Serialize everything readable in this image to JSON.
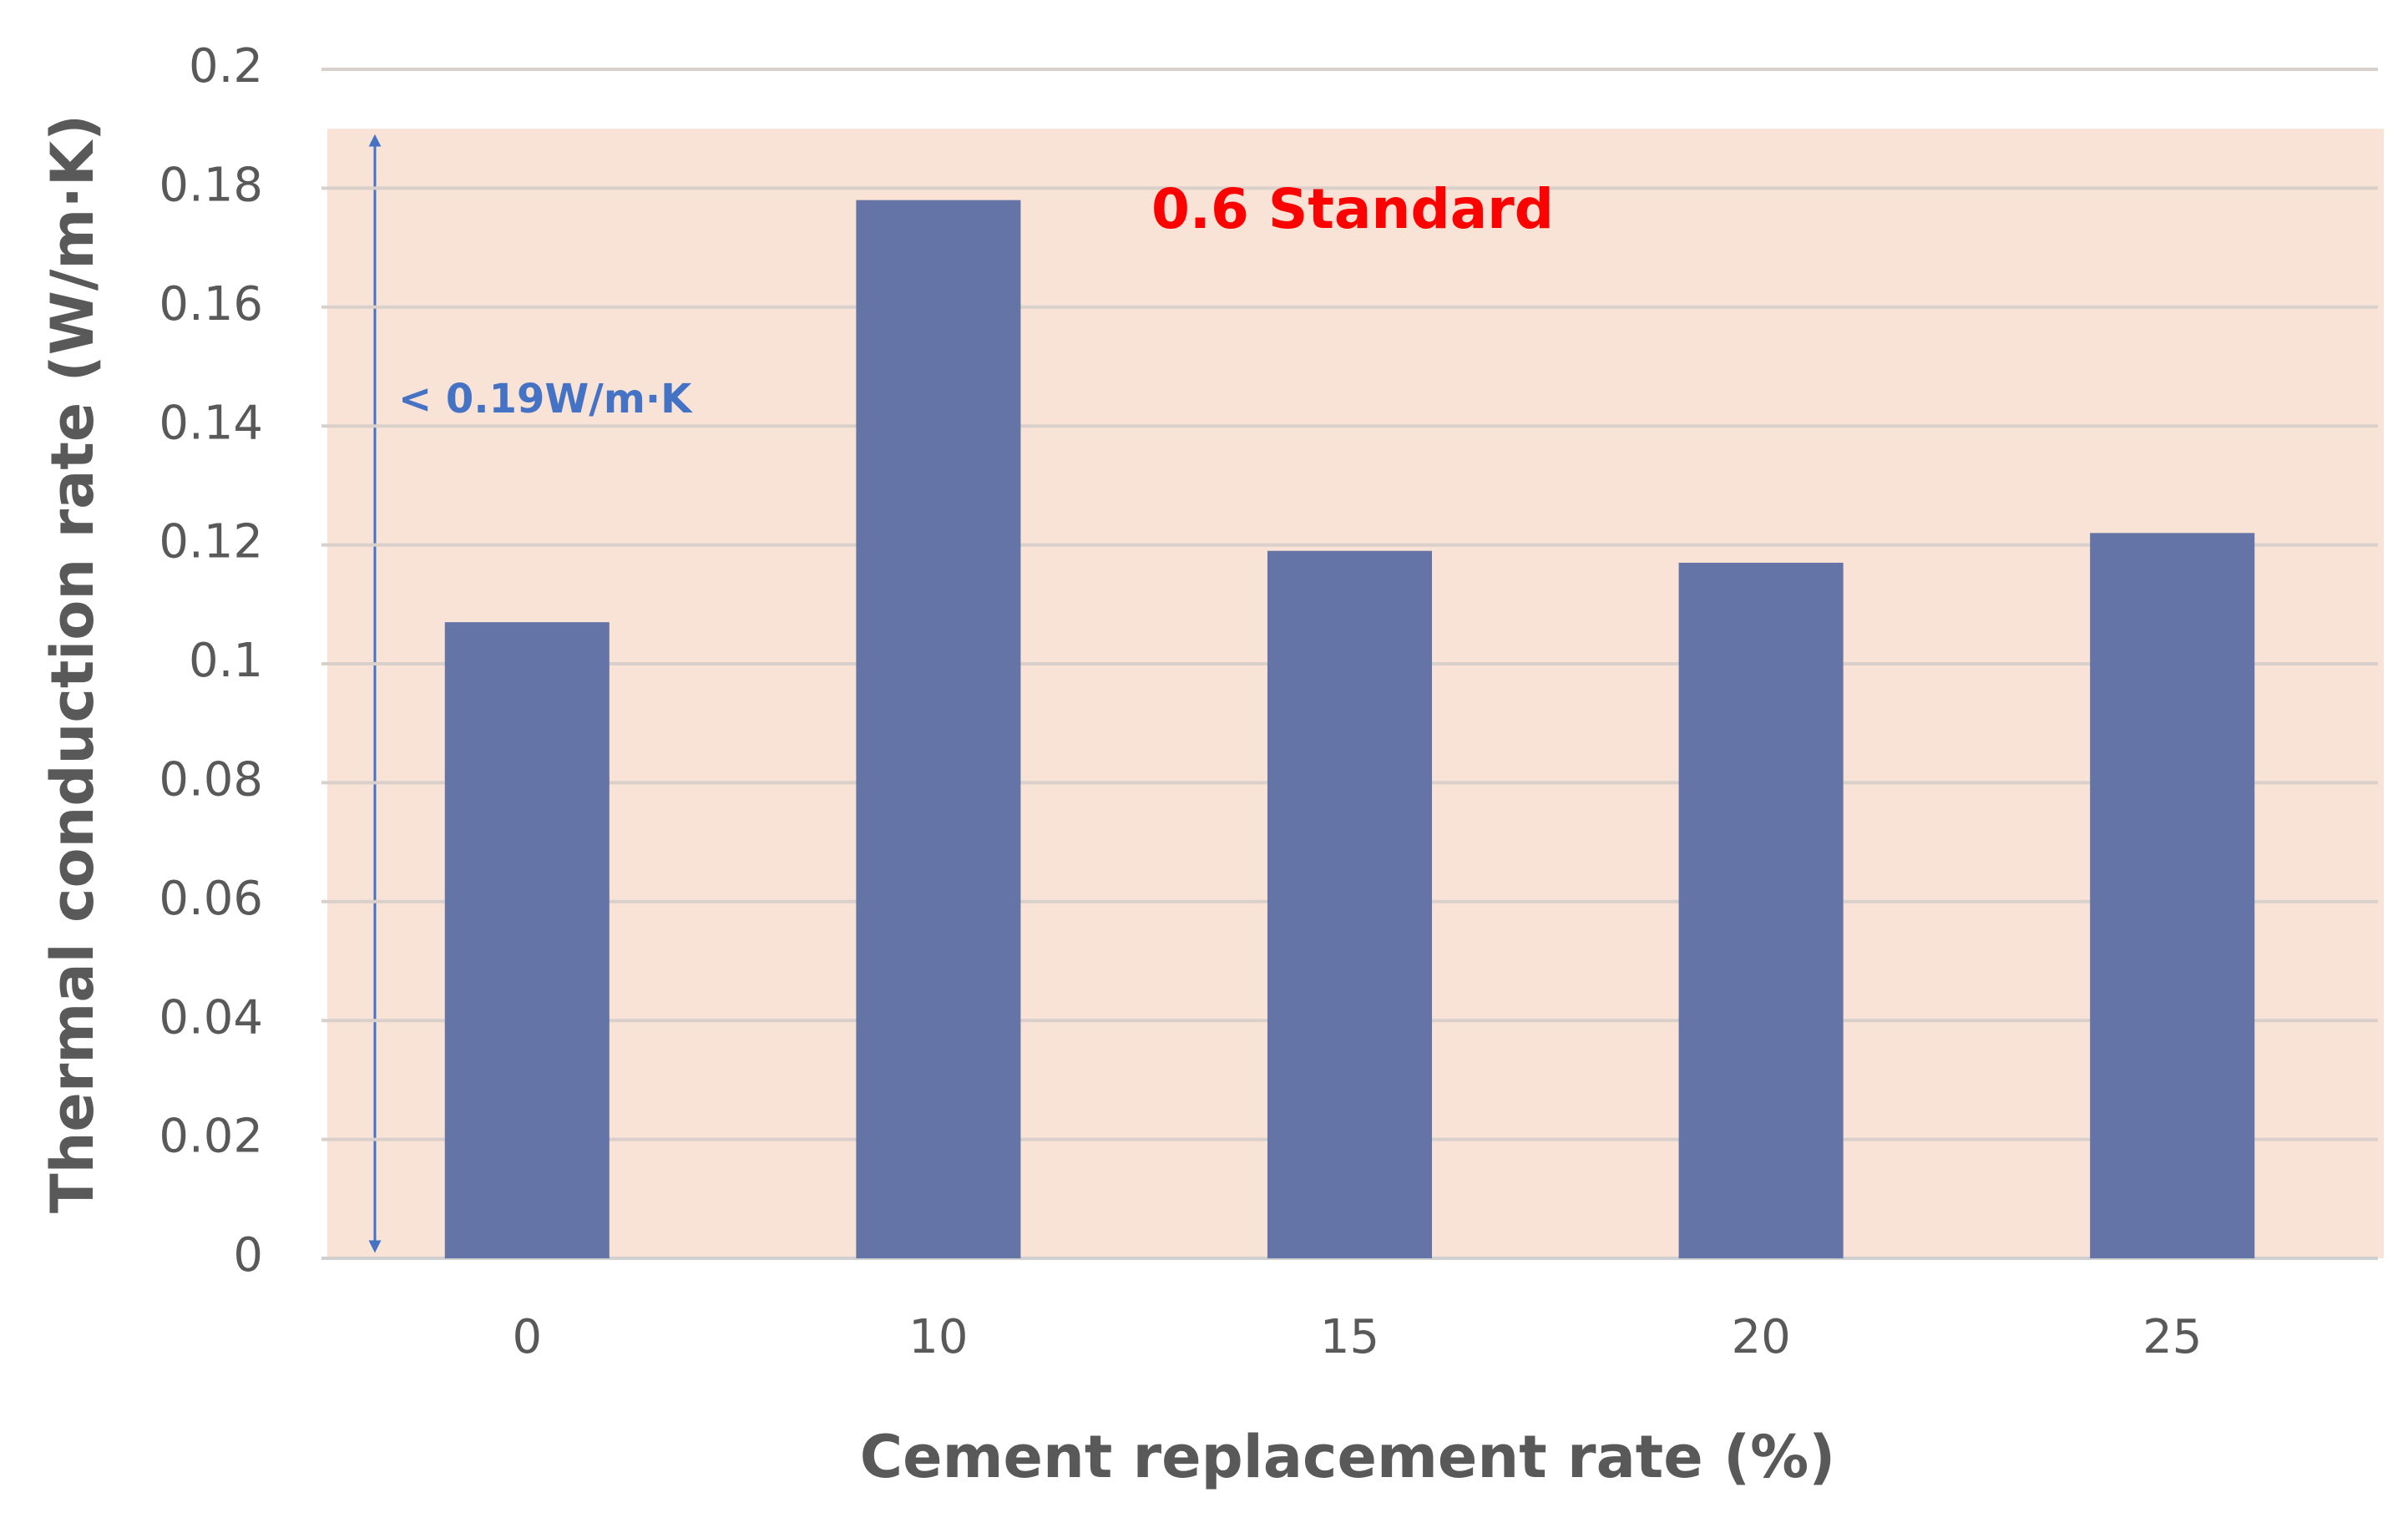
{
  "chart_data": {
    "type": "bar",
    "x_label": "Cement replacement rate (%)",
    "y_label": "Thermal conduction rate  (W/m·K)",
    "categories": [
      "0",
      "10",
      "15",
      "20",
      "25"
    ],
    "values": [
      0.107,
      0.178,
      0.119,
      0.117,
      0.122
    ],
    "color": "#6474a6",
    "ylim": [
      0,
      0.2
    ],
    "yticks": [
      0,
      0.02,
      0.04,
      0.06,
      0.08,
      0.1,
      0.12,
      0.14,
      0.16,
      0.18,
      0.2
    ],
    "grid": true,
    "band_range": [
      0,
      0.19
    ],
    "band_color": "#f9e3d6",
    "annotations": [
      "0.6 Standard",
      "< 0.19W/m·K"
    ],
    "annotation_colors": [
      "#ff0000",
      "#4472c4"
    ]
  }
}
